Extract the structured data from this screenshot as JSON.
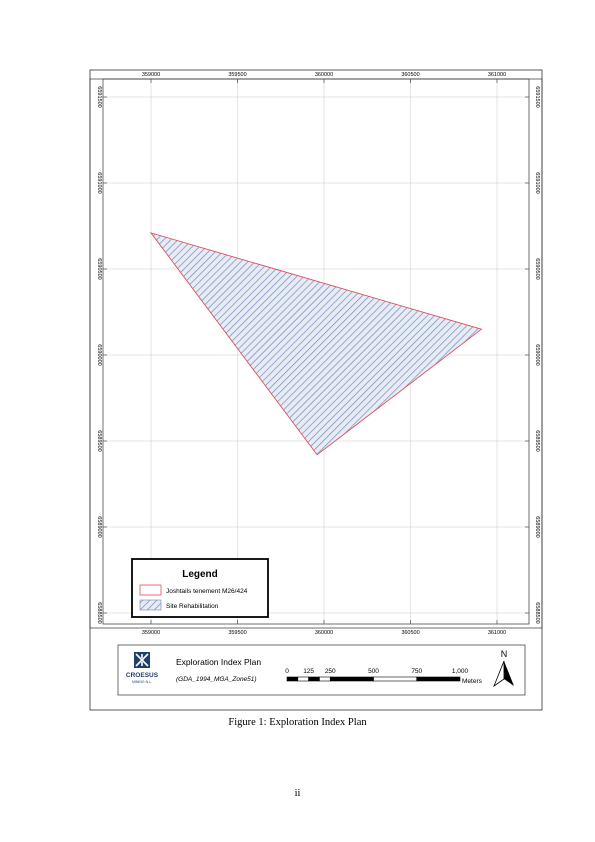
{
  "map": {
    "x_ticks": [
      "359000",
      "359500",
      "360000",
      "360500",
      "361000"
    ],
    "y_ticks": [
      "6591500",
      "6591000",
      "6590500",
      "6590000",
      "6589500",
      "6589000",
      "6588500"
    ],
    "polygon": {
      "vertices": [
        [
          359000,
          6590710
        ],
        [
          360910,
          6590150
        ],
        [
          359960,
          6589420
        ]
      ],
      "outline_color": "#e0505a",
      "hatch_color": "#6f86b8",
      "fill_color": "#e6ebf4"
    },
    "grid": true
  },
  "legend": {
    "title": "Legend",
    "items": [
      {
        "label": "Joshtails tenement M26/424",
        "symbol": "red-outline-box"
      },
      {
        "label": "Site Rehabilitation",
        "symbol": "blue-hatch-box"
      }
    ]
  },
  "title_block": {
    "logo_name": "CROESUS",
    "logo_sub": "MINING N.L.",
    "title": "Exploration Index Plan",
    "projection": "(GDA_1994_MGA_Zone51)",
    "scale_labels": [
      "0",
      "125",
      "250",
      "500",
      "750",
      "1,000"
    ],
    "scale_unit": "Meters",
    "north_label": "N"
  },
  "caption": "Figure 1: Exploration Index Plan",
  "page_number": "ii"
}
